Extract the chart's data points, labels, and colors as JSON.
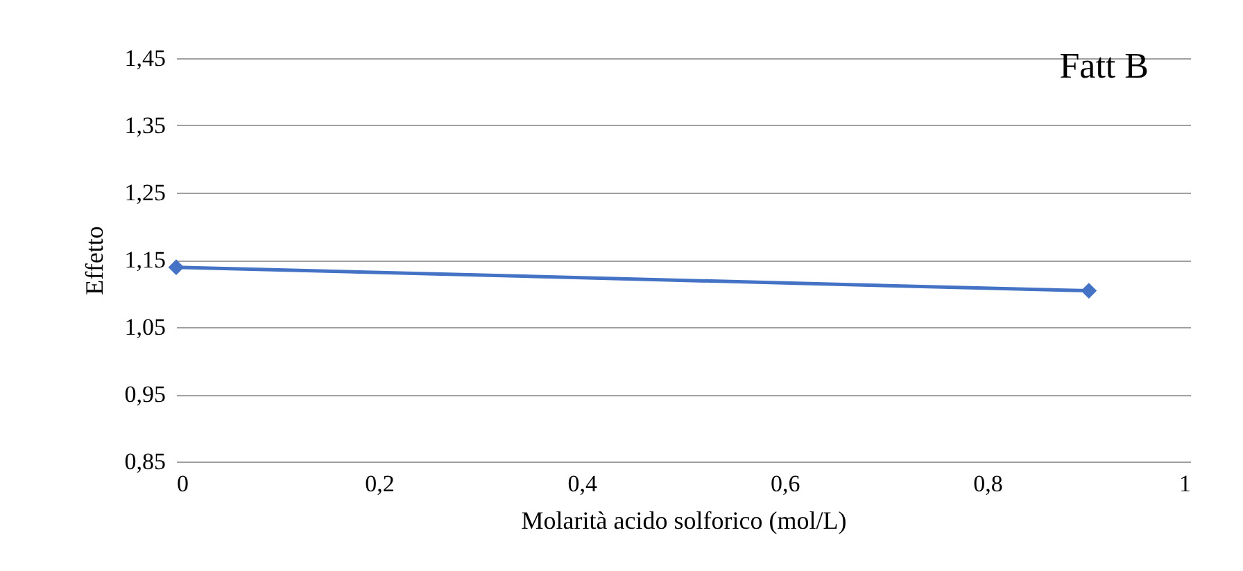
{
  "chart_data": {
    "type": "line",
    "title": "Fatt B",
    "xlabel": "Molarità acido solforico (mol/L)",
    "ylabel": "Effetto",
    "x": [
      0,
      0.9
    ],
    "series": [
      {
        "color": "#4472c4",
        "values": [
          1.139,
          1.104
        ]
      }
    ],
    "xlim": [
      0,
      1
    ],
    "xticks": [
      "0",
      {
        "value": 0.2,
        "label": "0,2"
      },
      {
        "value": 0.4,
        "label": "0,4"
      },
      {
        "value": 0.6,
        "label": "0,6"
      },
      {
        "value": 0.8,
        "label": "0,8"
      },
      1
    ],
    "ylim": [
      0.85,
      1.45
    ],
    "yticks": [
      {
        "value": 0.85,
        "label": "0,85"
      },
      {
        "value": 0.95,
        "label": "0,95"
      },
      {
        "value": 1.05,
        "label": "1,05"
      },
      {
        "value": 1.15,
        "label": "1,15"
      },
      {
        "value": 1.25,
        "label": "1,25"
      },
      {
        "value": 1.35,
        "label": "1,35"
      },
      {
        "value": 1.45,
        "label": "1,45"
      }
    ],
    "grid": "y",
    "marker": "diamond",
    "line_style": "solid"
  }
}
